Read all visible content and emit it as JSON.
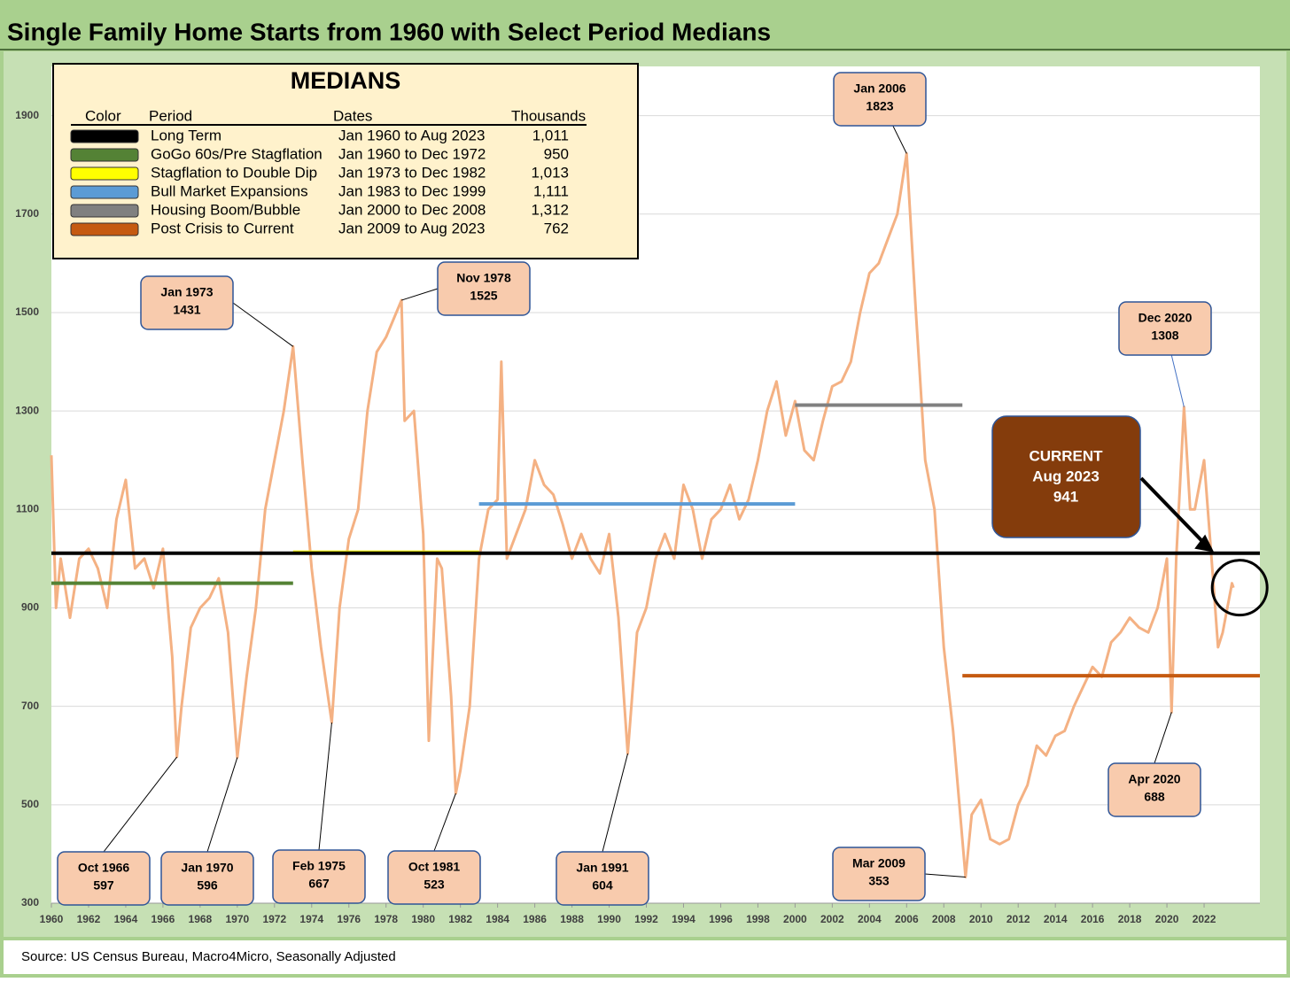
{
  "chart_data": {
    "type": "line",
    "title": "Single Family Home Starts from 1960 with Select Period Medians",
    "source": "Source: US Census Bureau, Macro4Micro, Seasonally Adjusted",
    "xlim": [
      1960,
      2025
    ],
    "xticks": [
      1960,
      1962,
      1964,
      1966,
      1968,
      1970,
      1972,
      1974,
      1976,
      1978,
      1980,
      1982,
      1984,
      1986,
      1988,
      1990,
      1992,
      1994,
      1996,
      1998,
      2000,
      2002,
      2004,
      2006,
      2008,
      2010,
      2012,
      2014,
      2016,
      2018,
      2020,
      2022
    ],
    "ylim": [
      300,
      2000
    ],
    "yticks": [
      300,
      500,
      700,
      900,
      1100,
      1300,
      1500,
      1700,
      1900
    ],
    "grid": true,
    "series": [
      {
        "name": "Single Family Home Starts",
        "color": "#f4b183",
        "x": [
          1960.0,
          1960.25,
          1960.5,
          1961.0,
          1961.5,
          1962.0,
          1962.5,
          1963.0,
          1963.5,
          1964.0,
          1964.5,
          1965.0,
          1965.5,
          1966.0,
          1966.5,
          1966.75,
          1967.0,
          1967.5,
          1968.0,
          1968.5,
          1969.0,
          1969.5,
          1970.0,
          1970.5,
          1971.0,
          1971.5,
          1972.0,
          1972.5,
          1973.0,
          1973.5,
          1974.0,
          1974.5,
          1975.08,
          1975.5,
          1976.0,
          1976.5,
          1977.0,
          1977.5,
          1978.0,
          1978.83,
          1979.0,
          1979.5,
          1980.0,
          1980.3,
          1980.75,
          1981.0,
          1981.5,
          1981.75,
          1982.0,
          1982.5,
          1983.0,
          1983.5,
          1984.0,
          1984.2,
          1984.5,
          1985.0,
          1985.5,
          1986.0,
          1986.5,
          1987.0,
          1987.5,
          1988.0,
          1988.5,
          1989.0,
          1989.5,
          1990.0,
          1990.5,
          1991.0,
          1991.5,
          1992.0,
          1992.5,
          1993.0,
          1993.5,
          1994.0,
          1994.5,
          1995.0,
          1995.5,
          1996.0,
          1996.5,
          1997.0,
          1997.5,
          1998.0,
          1998.5,
          1999.0,
          1999.5,
          2000.0,
          2000.5,
          2001.0,
          2001.5,
          2002.0,
          2002.5,
          2003.0,
          2003.5,
          2004.0,
          2004.5,
          2005.0,
          2005.5,
          2006.0,
          2006.5,
          2007.0,
          2007.5,
          2008.0,
          2008.5,
          2009.17,
          2009.5,
          2010.0,
          2010.5,
          2011.0,
          2011.5,
          2012.0,
          2012.5,
          2013.0,
          2013.5,
          2014.0,
          2014.5,
          2015.0,
          2015.5,
          2016.0,
          2016.5,
          2017.0,
          2017.5,
          2018.0,
          2018.5,
          2019.0,
          2019.5,
          2020.0,
          2020.25,
          2020.5,
          2020.92,
          2021.25,
          2021.5,
          2022.0,
          2022.5,
          2022.75,
          2023.0,
          2023.5,
          2023.58
        ],
        "values": [
          1210,
          900,
          1000,
          880,
          1000,
          1020,
          980,
          900,
          1080,
          1160,
          980,
          1000,
          940,
          1020,
          800,
          597,
          700,
          860,
          900,
          920,
          960,
          850,
          596,
          760,
          900,
          1100,
          1200,
          1300,
          1431,
          1200,
          980,
          820,
          667,
          900,
          1040,
          1100,
          1300,
          1420,
          1450,
          1525,
          1280,
          1300,
          1050,
          630,
          1000,
          980,
          720,
          523,
          570,
          700,
          1000,
          1100,
          1120,
          1400,
          1000,
          1050,
          1100,
          1200,
          1150,
          1130,
          1070,
          1000,
          1050,
          1000,
          970,
          1050,
          880,
          604,
          850,
          900,
          1000,
          1050,
          1000,
          1150,
          1100,
          1000,
          1080,
          1100,
          1150,
          1080,
          1120,
          1200,
          1300,
          1360,
          1250,
          1320,
          1220,
          1200,
          1280,
          1350,
          1360,
          1400,
          1500,
          1580,
          1600,
          1650,
          1700,
          1823,
          1500,
          1200,
          1100,
          820,
          650,
          353,
          480,
          510,
          430,
          420,
          430,
          500,
          540,
          620,
          600,
          640,
          650,
          700,
          740,
          780,
          760,
          830,
          850,
          880,
          860,
          850,
          900,
          1000,
          688,
          1000,
          1308,
          1100,
          1100,
          1200,
          950,
          820,
          850,
          950,
          941
        ]
      }
    ],
    "medians": {
      "title": "MEDIANS",
      "headers": [
        "Color",
        "Period",
        "Dates",
        "Thousands"
      ],
      "rows": [
        {
          "name": "Long Term",
          "dates": "Jan 1960 to Aug 2023",
          "value": 1011,
          "label": "1,011",
          "color": "#000000",
          "x": [
            1960,
            2025
          ]
        },
        {
          "name": "GoGo 60s/Pre Stagflation",
          "dates": "Jan 1960 to Dec 1972",
          "value": 950,
          "label": "950",
          "color": "#548235",
          "x": [
            1960,
            1973
          ]
        },
        {
          "name": "Stagflation to Double Dip",
          "dates": "Jan 1973 to Dec 1982",
          "value": 1013,
          "label": "1,013",
          "color": "#ffff00",
          "x": [
            1973,
            1983
          ]
        },
        {
          "name": "Bull Market Expansions",
          "dates": "Jan 1983 to Dec 1999",
          "value": 1111,
          "label": "1,111",
          "color": "#5b9bd5",
          "x": [
            1983,
            2000
          ]
        },
        {
          "name": "Housing Boom/Bubble",
          "dates": "Jan 2000 to Dec 2008",
          "value": 1312,
          "label": "1,312",
          "color": "#808080",
          "x": [
            2000,
            2009
          ]
        },
        {
          "name": "Post Crisis to Current",
          "dates": "Jan 2009 to Aug 2023",
          "value": 762,
          "label": "762",
          "color": "#c55a11",
          "x": [
            2009,
            2025
          ]
        }
      ]
    },
    "annotations": [
      {
        "label": "Oct 1966",
        "x": 1966.75,
        "value": 597
      },
      {
        "label": "Jan 1970",
        "x": 1970.0,
        "value": 596
      },
      {
        "label": "Jan 1973",
        "x": 1973.0,
        "value": 1431
      },
      {
        "label": "Feb 1975",
        "x": 1975.08,
        "value": 667
      },
      {
        "label": "Nov 1978",
        "x": 1978.83,
        "value": 1525
      },
      {
        "label": "Oct 1981",
        "x": 1981.75,
        "value": 523
      },
      {
        "label": "Jan 1991",
        "x": 1991.0,
        "value": 604
      },
      {
        "label": "Jan 2006",
        "x": 2006.0,
        "value": 1823
      },
      {
        "label": "Mar 2009",
        "x": 2009.17,
        "value": 353
      },
      {
        "label": "Apr 2020",
        "x": 2020.25,
        "value": 688
      },
      {
        "label": "Dec 2020",
        "x": 2020.92,
        "value": 1308
      }
    ],
    "current": {
      "title": "CURRENT",
      "label": "Aug 2023",
      "x": 2023.58,
      "value": 941
    }
  }
}
